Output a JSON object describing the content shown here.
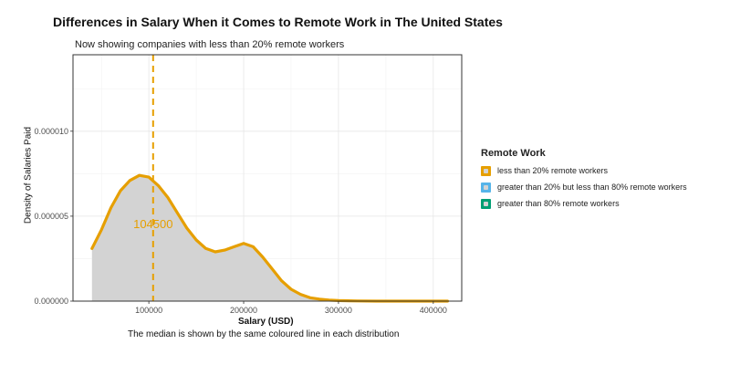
{
  "chart_data": {
    "type": "area",
    "title": "Differences in Salary When it Comes to Remote Work in The United States",
    "subtitle": "Now showing companies with less than 20% remote workers",
    "caption": "The median is shown by the same coloured line in each distribution",
    "xlabel": "Salary (USD)",
    "ylabel": "Density of Salaries Paid",
    "xlim": [
      20000,
      430000
    ],
    "ylim": [
      0,
      1.45e-05
    ],
    "x_ticks": [
      100000,
      200000,
      300000,
      400000
    ],
    "x_tick_labels": [
      "100000",
      "200000",
      "300000",
      "400000"
    ],
    "y_ticks": [
      0,
      5e-06,
      1e-05
    ],
    "y_tick_labels": [
      "0.000000",
      "0.000005",
      "0.000010"
    ],
    "grid": true,
    "legend_position": "right",
    "legend_title": "Remote Work",
    "legend": [
      {
        "label": "less than 20% remote workers",
        "color": "#E69F00"
      },
      {
        "label": "greater than 20% but less than 80% remote workers",
        "color": "#56B4E9"
      },
      {
        "label": "greater than 80% remote workers",
        "color": "#009E73"
      }
    ],
    "series": [
      {
        "name": "less than 20% remote workers",
        "color": "#E69F00",
        "fill": "#d3d3d3",
        "x": [
          40000,
          50000,
          60000,
          70000,
          80000,
          90000,
          100000,
          110000,
          120000,
          130000,
          140000,
          150000,
          160000,
          170000,
          180000,
          190000,
          200000,
          210000,
          220000,
          230000,
          240000,
          250000,
          260000,
          270000,
          280000,
          290000,
          300000,
          320000,
          340000,
          360000,
          380000,
          400000,
          415000
        ],
        "y": [
          3.1e-06,
          4.2e-06,
          5.5e-06,
          6.5e-06,
          7.1e-06,
          7.4e-06,
          7.3e-06,
          6.8e-06,
          6.1e-06,
          5.2e-06,
          4.3e-06,
          3.6e-06,
          3.1e-06,
          2.9e-06,
          3e-06,
          3.2e-06,
          3.4e-06,
          3.2e-06,
          2.6e-06,
          1.9e-06,
          1.2e-06,
          7e-07,
          4e-07,
          2e-07,
          1.2e-07,
          6e-08,
          3e-08,
          1e-08,
          0,
          0,
          0,
          0,
          0
        ]
      }
    ],
    "median": {
      "value": 104500,
      "label": "104500",
      "color": "#E69F00"
    }
  }
}
